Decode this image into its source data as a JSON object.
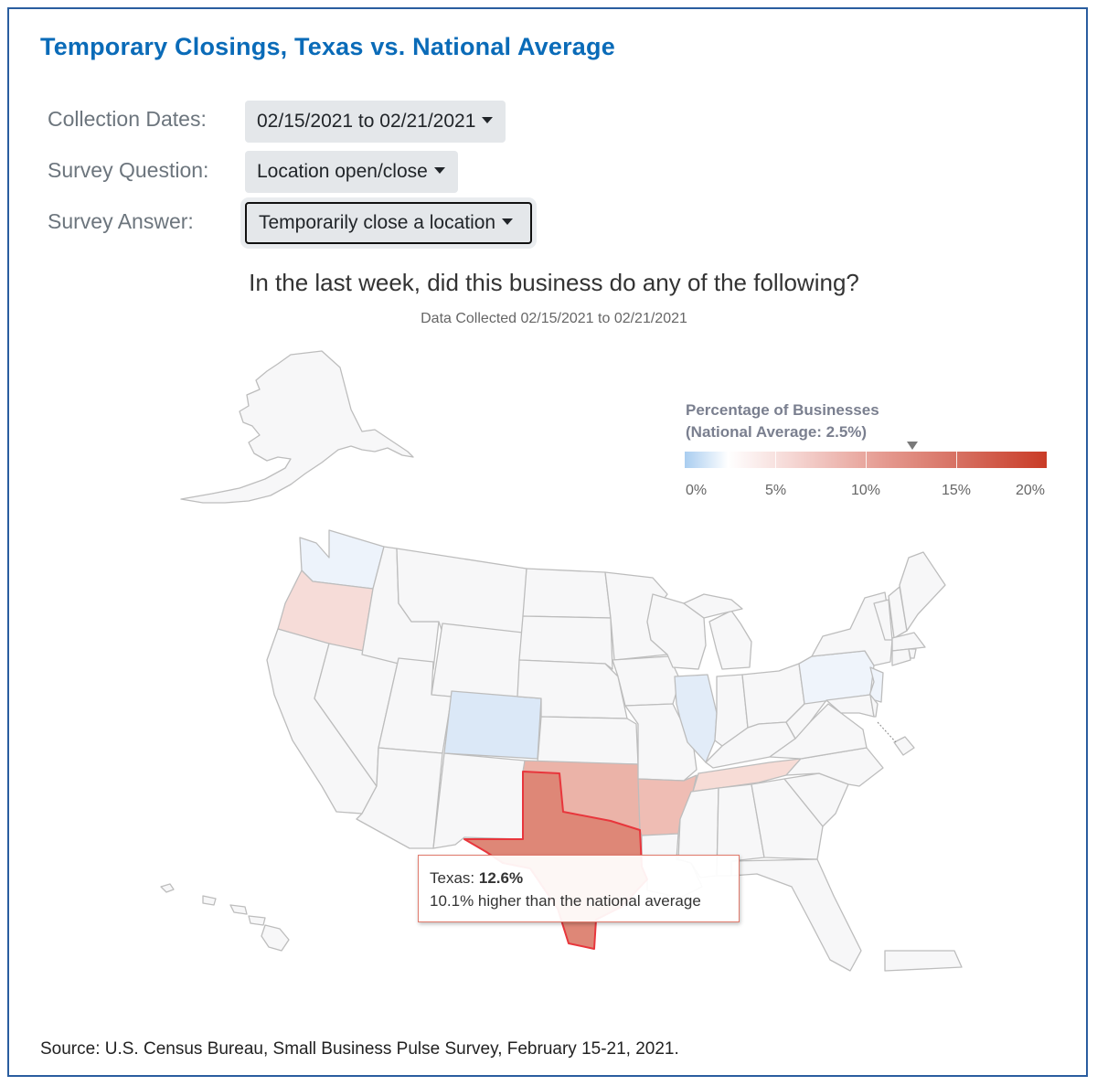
{
  "title": "Temporary Closings, Texas vs. National Average",
  "controls": {
    "dates_label": "Collection Dates:",
    "dates_value": "02/15/2021 to 02/21/2021",
    "question_label": "Survey Question:",
    "question_value": "Location open/close",
    "answer_label": "Survey Answer:",
    "answer_value": "Temporarily close a location"
  },
  "map": {
    "question": "In the last week, did this business do any of the following?",
    "subtitle": "Data Collected 02/15/2021 to 02/21/2021",
    "legend": {
      "title": "Percentage of Businesses",
      "subtitle": "(National Average: 2.5%)",
      "national_average": 2.5,
      "range": [
        0,
        20
      ],
      "tick_labels": [
        "0%",
        "5%",
        "10%",
        "15%",
        "20%"
      ]
    },
    "tooltip": {
      "state": "Texas",
      "state_label": "Texas: ",
      "value": "12.6%",
      "comparison": "10.1% higher than the national average"
    },
    "colors": {
      "default": "#f7f7f8",
      "border": "#bdbdbd",
      "highlight_border": "#e8363c",
      "texas": "#de8777",
      "oklahoma": "#ebb3a8",
      "arkansas": "#efbdb4",
      "tennessee": "#f7dcd6",
      "oregon": "#f6dcd8",
      "washington": "#edf3fb",
      "colorado": "#dbe8f7",
      "illinois": "#e2ecf8",
      "pennsylvania": "#eff4fb"
    }
  },
  "source": "Source: U.S. Census Bureau, Small Business Pulse Survey, February 15-21, 2021."
}
